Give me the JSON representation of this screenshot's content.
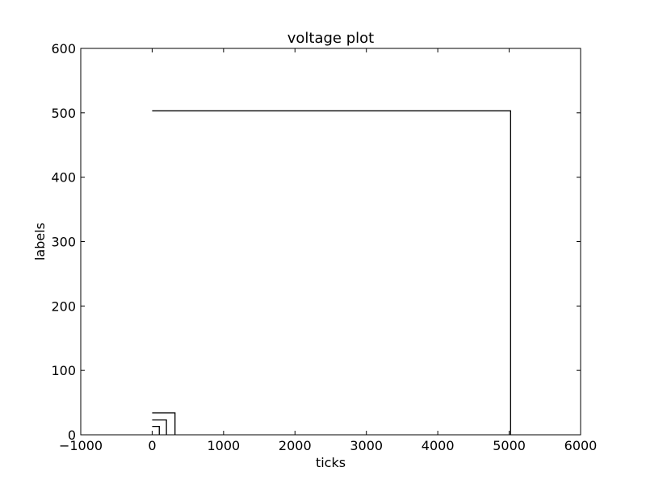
{
  "chart_data": {
    "type": "line",
    "title": "voltage plot",
    "xlabel": "ticks",
    "ylabel": "labels",
    "xlim": [
      -1000,
      6000
    ],
    "ylim": [
      0,
      600
    ],
    "x_ticks": [
      -1000,
      0,
      1000,
      2000,
      3000,
      4000,
      5000,
      6000
    ],
    "y_ticks": [
      0,
      100,
      200,
      300,
      400,
      500,
      600
    ],
    "x_tick_labels": [
      "−1000",
      "0",
      "1000",
      "2000",
      "3000",
      "4000",
      "5000",
      "6000"
    ],
    "y_tick_labels": [
      "0",
      "100",
      "200",
      "300",
      "400",
      "500",
      "600"
    ],
    "grid": false,
    "legend": false,
    "line_color": "#000000",
    "series": [
      {
        "x": [
          0,
          100,
          100
        ],
        "y": [
          13,
          13,
          0
        ]
      },
      {
        "x": [
          0,
          200,
          200
        ],
        "y": [
          23,
          23,
          0
        ]
      },
      {
        "x": [
          0,
          320,
          320
        ],
        "y": [
          34,
          34,
          0
        ]
      },
      {
        "x": [
          0,
          5020,
          5020
        ],
        "y": [
          503,
          503,
          0
        ]
      }
    ]
  }
}
